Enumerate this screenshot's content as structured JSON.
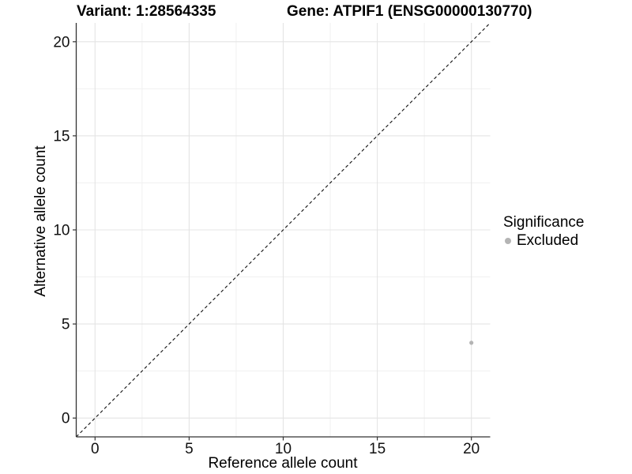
{
  "titles": {
    "variant": "Variant: 1:28564335",
    "gene": "Gene: ATPIF1 (ENSG00000130770)"
  },
  "axes": {
    "x_label": "Reference allele count",
    "y_label": "Alternative allele count"
  },
  "legend": {
    "title": "Significance",
    "items": [
      {
        "label": "Excluded",
        "color": "#b4b4b4",
        "marker": "dot-icon"
      }
    ]
  },
  "colors": {
    "background": "#ffffff",
    "grid_major": "#e4e4e4",
    "grid_minor": "#f0f0f0",
    "axis_line": "#333333",
    "tick_label": "#111111",
    "reference_line": "#111111",
    "point": "#b4b4b4"
  },
  "chart_data": {
    "type": "scatter",
    "title": "Variant: 1:28564335  |  Gene: ATPIF1 (ENSG00000130770)",
    "xlabel": "Reference allele count",
    "ylabel": "Alternative allele count",
    "xlim": [
      -1,
      21
    ],
    "ylim": [
      -1,
      21
    ],
    "x_ticks": [
      0,
      5,
      10,
      15,
      20
    ],
    "y_ticks": [
      0,
      5,
      10,
      15,
      20
    ],
    "x_minor_ticks": [
      2.5,
      7.5,
      12.5,
      17.5
    ],
    "y_minor_ticks": [
      2.5,
      7.5,
      12.5,
      17.5
    ],
    "grid": true,
    "legend_position": "right",
    "series": [
      {
        "name": "Excluded",
        "color": "#b4b4b4",
        "points": [
          {
            "x": 20,
            "y": 4
          }
        ]
      }
    ],
    "reference_line": {
      "description": "identity line y = x",
      "from": {
        "x": -1,
        "y": -1
      },
      "to": {
        "x": 21,
        "y": 21
      },
      "style": "dashed",
      "color": "#111111"
    }
  }
}
